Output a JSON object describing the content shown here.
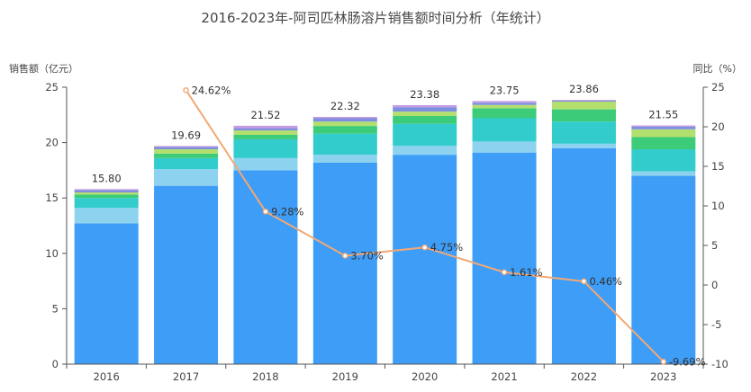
{
  "chart_data": {
    "type": "bar",
    "title": "2016-2023年-阿司匹林肠溶片销售额时间分析（年统计）",
    "ylabel": "销售额（亿元）",
    "y2label": "同比（%）",
    "categories": [
      "2016",
      "2017",
      "2018",
      "2019",
      "2020",
      "2021",
      "2022",
      "2023"
    ],
    "ylim": [
      0,
      25
    ],
    "yticks": [
      0,
      5,
      10,
      15,
      20,
      25
    ],
    "y2lim": [
      -10,
      25
    ],
    "y2ticks": [
      -10,
      -5,
      0,
      5,
      10,
      15,
      20,
      25
    ],
    "totals": [
      15.8,
      19.69,
      21.52,
      22.32,
      23.38,
      23.75,
      23.86,
      21.55
    ],
    "total_labels": [
      "15.80",
      "19.69",
      "21.52",
      "22.32",
      "23.38",
      "23.75",
      "23.86",
      "21.55"
    ],
    "series": [
      {
        "color": "#3d9df7",
        "values": [
          12.7,
          16.1,
          17.5,
          18.2,
          18.9,
          19.1,
          19.5,
          17.0
        ]
      },
      {
        "color": "#8dd2ee",
        "values": [
          1.4,
          1.5,
          1.1,
          0.7,
          0.8,
          1.0,
          0.4,
          0.4
        ]
      },
      {
        "color": "#33cccc",
        "values": [
          0.9,
          1.0,
          1.7,
          1.9,
          2.0,
          2.1,
          2.0,
          2.0
        ]
      },
      {
        "color": "#3ccb78",
        "values": [
          0.3,
          0.4,
          0.4,
          0.7,
          0.7,
          0.9,
          1.1,
          1.1
        ]
      },
      {
        "color": "#b2df6e",
        "values": [
          0.2,
          0.4,
          0.4,
          0.4,
          0.4,
          0.3,
          0.7,
          0.7
        ]
      },
      {
        "color": "#7e8fe0",
        "values": [
          0.2,
          0.2,
          0.2,
          0.3,
          0.4,
          0.2,
          0.1,
          0.25
        ]
      },
      {
        "color": "#c79ae0",
        "values": [
          0.1,
          0.09,
          0.22,
          0.12,
          0.18,
          0.15,
          0.06,
          0.1
        ]
      }
    ],
    "yoy": {
      "color": "#f2a876",
      "points": [
        {
          "x": "2017",
          "value": 24.62,
          "label": "24.62%"
        },
        {
          "x": "2018",
          "value": 9.28,
          "label": "9.28%"
        },
        {
          "x": "2019",
          "value": 3.7,
          "label": "3.70%"
        },
        {
          "x": "2020",
          "value": 4.75,
          "label": "4.75%"
        },
        {
          "x": "2021",
          "value": 1.61,
          "label": "1.61%"
        },
        {
          "x": "2022",
          "value": 0.46,
          "label": "0.46%"
        },
        {
          "x": "2023",
          "value": -9.69,
          "label": "-9.69%"
        }
      ]
    },
    "grid": false,
    "legend": "none"
  }
}
